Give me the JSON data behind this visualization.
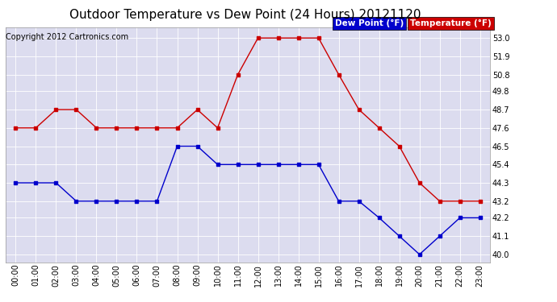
{
  "title": "Outdoor Temperature vs Dew Point (24 Hours) 20121120",
  "copyright": "Copyright 2012 Cartronics.com",
  "legend_dew": "Dew Point (°F)",
  "legend_temp": "Temperature (°F)",
  "hours": [
    "00:00",
    "01:00",
    "02:00",
    "03:00",
    "04:00",
    "05:00",
    "06:00",
    "07:00",
    "08:00",
    "09:00",
    "10:00",
    "11:00",
    "12:00",
    "13:00",
    "14:00",
    "15:00",
    "16:00",
    "17:00",
    "18:00",
    "19:00",
    "20:00",
    "21:00",
    "22:00",
    "23:00"
  ],
  "temperature": [
    47.6,
    47.6,
    48.7,
    48.7,
    47.6,
    47.6,
    47.6,
    47.6,
    47.6,
    48.7,
    47.6,
    50.8,
    53.0,
    53.0,
    53.0,
    53.0,
    50.8,
    48.7,
    47.6,
    46.5,
    44.3,
    43.2,
    43.2,
    43.2
  ],
  "dew_point": [
    44.3,
    44.3,
    44.3,
    43.2,
    43.2,
    43.2,
    43.2,
    43.2,
    46.5,
    46.5,
    45.4,
    45.4,
    45.4,
    45.4,
    45.4,
    45.4,
    43.2,
    43.2,
    42.2,
    41.1,
    40.0,
    41.1,
    42.2,
    42.2
  ],
  "temp_color": "#cc0000",
  "dew_color": "#0000cc",
  "bg_color": "#ffffff",
  "plot_bg_color": "#dcdcef",
  "grid_color": "#ffffff",
  "ylim_min": 39.5,
  "ylim_max": 53.65,
  "yticks": [
    40.0,
    41.1,
    42.2,
    43.2,
    44.3,
    45.4,
    46.5,
    47.6,
    48.7,
    49.8,
    50.8,
    51.9,
    53.0
  ],
  "title_fontsize": 11,
  "tick_fontsize": 7,
  "legend_fontsize": 7.5,
  "copyright_fontsize": 7,
  "marker_size": 2.5,
  "line_width": 1.0
}
